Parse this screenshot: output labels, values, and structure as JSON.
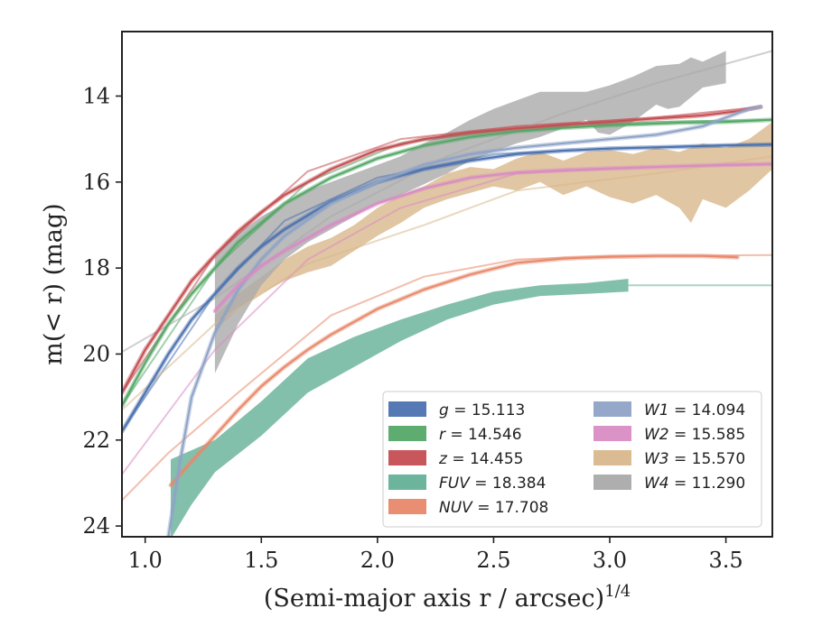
{
  "chart_data": {
    "type": "line",
    "title": "",
    "xlabel": "(Semi-major axis r / arcsec)",
    "xlabel_sup": "1/4",
    "ylabel": "m(< r) (mag)",
    "xlim": [
      0.9,
      3.7
    ],
    "ylim": [
      24.25,
      12.5
    ],
    "y_inverted": true,
    "x_ticks": [
      1.0,
      1.5,
      2.0,
      2.5,
      3.0,
      3.5
    ],
    "x_tick_labels": [
      "1.0",
      "1.5",
      "2.0",
      "2.5",
      "3.0",
      "3.5"
    ],
    "y_ticks": [
      14,
      16,
      18,
      20,
      22,
      24
    ],
    "y_tick_labels": [
      "14",
      "16",
      "18",
      "20",
      "22",
      "24"
    ],
    "grid": false,
    "legend_position": "lower-right",
    "series": [
      {
        "name": "g",
        "total": "15.113",
        "color": "#4c72b0",
        "kind": "line",
        "extrap": [
          [
            0.9,
            21.8
          ],
          [
            1.3,
            18.6
          ],
          [
            1.6,
            16.9
          ],
          [
            2.0,
            15.9
          ],
          [
            2.5,
            15.35
          ],
          [
            3.0,
            15.22
          ],
          [
            3.5,
            15.14
          ],
          [
            3.7,
            15.12
          ]
        ],
        "points": [
          [
            0.9,
            21.8
          ],
          [
            1.0,
            20.9
          ],
          [
            1.1,
            20.0
          ],
          [
            1.2,
            19.2
          ],
          [
            1.3,
            18.6
          ],
          [
            1.4,
            18.0
          ],
          [
            1.5,
            17.5
          ],
          [
            1.6,
            17.1
          ],
          [
            1.8,
            16.45
          ],
          [
            2.0,
            16.0
          ],
          [
            2.2,
            15.7
          ],
          [
            2.4,
            15.5
          ],
          [
            2.6,
            15.35
          ],
          [
            2.8,
            15.27
          ],
          [
            3.0,
            15.22
          ],
          [
            3.3,
            15.18
          ],
          [
            3.5,
            15.15
          ],
          [
            3.7,
            15.13
          ]
        ]
      },
      {
        "name": "r",
        "total": "14.546",
        "color": "#55a868",
        "kind": "line",
        "extrap": [
          [
            0.9,
            21.2
          ],
          [
            1.3,
            18.0
          ],
          [
            1.7,
            16.0
          ],
          [
            2.1,
            15.1
          ],
          [
            2.6,
            14.75
          ],
          [
            3.2,
            14.6
          ],
          [
            3.7,
            14.55
          ]
        ],
        "points": [
          [
            0.9,
            21.2
          ],
          [
            1.0,
            20.2
          ],
          [
            1.1,
            19.3
          ],
          [
            1.2,
            18.6
          ],
          [
            1.3,
            18.0
          ],
          [
            1.4,
            17.4
          ],
          [
            1.5,
            16.95
          ],
          [
            1.6,
            16.5
          ],
          [
            1.8,
            15.9
          ],
          [
            2.0,
            15.45
          ],
          [
            2.2,
            15.15
          ],
          [
            2.4,
            14.95
          ],
          [
            2.6,
            14.82
          ],
          [
            2.8,
            14.74
          ],
          [
            3.0,
            14.68
          ],
          [
            3.3,
            14.62
          ],
          [
            3.5,
            14.6
          ],
          [
            3.7,
            14.55
          ]
        ]
      },
      {
        "name": "z",
        "total": "14.455",
        "color": "#c44e52",
        "kind": "line",
        "extrap": [
          [
            0.9,
            20.9
          ],
          [
            1.3,
            17.7
          ],
          [
            1.7,
            15.75
          ],
          [
            2.1,
            15.0
          ],
          [
            2.6,
            14.7
          ],
          [
            3.2,
            14.5
          ],
          [
            3.65,
            14.25
          ]
        ],
        "points": [
          [
            0.9,
            20.9
          ],
          [
            1.0,
            19.9
          ],
          [
            1.1,
            19.1
          ],
          [
            1.2,
            18.3
          ],
          [
            1.3,
            17.7
          ],
          [
            1.4,
            17.15
          ],
          [
            1.5,
            16.7
          ],
          [
            1.6,
            16.3
          ],
          [
            1.8,
            15.7
          ],
          [
            2.0,
            15.25
          ],
          [
            2.2,
            15.0
          ],
          [
            2.4,
            14.85
          ],
          [
            2.6,
            14.75
          ],
          [
            2.8,
            14.67
          ],
          [
            3.0,
            14.6
          ],
          [
            3.2,
            14.52
          ],
          [
            3.4,
            14.45
          ],
          [
            3.55,
            14.35
          ],
          [
            3.65,
            14.25
          ]
        ]
      },
      {
        "name": "FUV",
        "total": "18.384",
        "color": "#64b097",
        "kind": "band",
        "extrap": [
          [
            3.08,
            18.4
          ],
          [
            3.7,
            18.4
          ]
        ],
        "upper": [
          [
            1.11,
            22.45
          ],
          [
            1.3,
            22.0
          ],
          [
            1.5,
            21.1
          ],
          [
            1.7,
            20.1
          ],
          [
            1.9,
            19.6
          ],
          [
            2.1,
            19.2
          ],
          [
            2.3,
            18.85
          ],
          [
            2.5,
            18.55
          ],
          [
            2.7,
            18.4
          ],
          [
            2.9,
            18.35
          ],
          [
            3.08,
            18.25
          ]
        ],
        "lower": [
          [
            1.11,
            24.3
          ],
          [
            1.2,
            23.5
          ],
          [
            1.3,
            22.75
          ],
          [
            1.5,
            21.9
          ],
          [
            1.7,
            20.9
          ],
          [
            1.9,
            20.3
          ],
          [
            2.1,
            19.7
          ],
          [
            2.3,
            19.2
          ],
          [
            2.5,
            18.85
          ],
          [
            2.7,
            18.65
          ],
          [
            2.9,
            18.6
          ],
          [
            3.08,
            18.55
          ]
        ]
      },
      {
        "name": "NUV",
        "total": "17.708",
        "color": "#e8886a",
        "kind": "line",
        "extrap": [
          [
            0.9,
            23.4
          ],
          [
            1.1,
            22.3
          ],
          [
            1.4,
            20.9
          ],
          [
            1.8,
            19.1
          ],
          [
            2.2,
            18.2
          ],
          [
            2.6,
            17.8
          ],
          [
            3.0,
            17.72
          ],
          [
            3.7,
            17.7
          ]
        ],
        "points": [
          [
            1.11,
            23.05
          ],
          [
            1.2,
            22.5
          ],
          [
            1.3,
            21.9
          ],
          [
            1.4,
            21.3
          ],
          [
            1.5,
            20.75
          ],
          [
            1.6,
            20.3
          ],
          [
            1.7,
            19.9
          ],
          [
            1.8,
            19.55
          ],
          [
            1.9,
            19.25
          ],
          [
            2.0,
            18.95
          ],
          [
            2.2,
            18.5
          ],
          [
            2.4,
            18.15
          ],
          [
            2.6,
            17.88
          ],
          [
            2.8,
            17.78
          ],
          [
            3.0,
            17.74
          ],
          [
            3.2,
            17.72
          ],
          [
            3.4,
            17.72
          ],
          [
            3.55,
            17.75
          ]
        ]
      },
      {
        "name": "W1",
        "total": "14.094",
        "color": "#8fa3c7",
        "kind": "line",
        "extrap": [],
        "points": [
          [
            1.1,
            24.25
          ],
          [
            1.15,
            22.5
          ],
          [
            1.2,
            21.0
          ],
          [
            1.3,
            19.5
          ],
          [
            1.4,
            18.5
          ],
          [
            1.5,
            17.8
          ],
          [
            1.6,
            17.25
          ],
          [
            1.8,
            16.5
          ],
          [
            2.0,
            16.0
          ],
          [
            2.2,
            15.6
          ],
          [
            2.4,
            15.35
          ],
          [
            2.6,
            15.2
          ],
          [
            2.8,
            15.1
          ],
          [
            3.0,
            15.0
          ],
          [
            3.2,
            14.9
          ],
          [
            3.4,
            14.7
          ],
          [
            3.5,
            14.5
          ],
          [
            3.6,
            14.3
          ],
          [
            3.65,
            14.25
          ]
        ]
      },
      {
        "name": "W2",
        "total": "15.585",
        "color": "#d98cc4",
        "kind": "line",
        "extrap": [
          [
            0.9,
            22.8
          ],
          [
            1.3,
            19.9
          ],
          [
            1.7,
            17.8
          ],
          [
            2.1,
            16.6
          ],
          [
            2.6,
            15.8
          ],
          [
            3.2,
            15.65
          ],
          [
            3.7,
            15.59
          ]
        ],
        "points": [
          [
            1.3,
            19.0
          ],
          [
            1.4,
            18.4
          ],
          [
            1.5,
            17.95
          ],
          [
            1.6,
            17.6
          ],
          [
            1.7,
            17.3
          ],
          [
            1.8,
            17.0
          ],
          [
            2.0,
            16.5
          ],
          [
            2.2,
            16.15
          ],
          [
            2.4,
            15.9
          ],
          [
            2.6,
            15.78
          ],
          [
            2.8,
            15.72
          ],
          [
            3.0,
            15.68
          ],
          [
            3.3,
            15.63
          ],
          [
            3.5,
            15.6
          ],
          [
            3.7,
            15.58
          ]
        ]
      },
      {
        "name": "W3",
        "total": "15.570",
        "color": "#d9b88c",
        "kind": "band",
        "extrap": [
          [
            0.9,
            21.3
          ],
          [
            1.3,
            19.3
          ],
          [
            1.7,
            17.9
          ],
          [
            2.2,
            17.0
          ],
          [
            2.6,
            16.2
          ],
          [
            3.2,
            15.8
          ],
          [
            3.7,
            15.4
          ]
        ],
        "upper": [
          [
            1.3,
            19.1
          ],
          [
            1.4,
            18.6
          ],
          [
            1.5,
            18.2
          ],
          [
            1.6,
            17.8
          ],
          [
            1.7,
            17.5
          ],
          [
            1.8,
            17.3
          ],
          [
            1.9,
            17.0
          ],
          [
            2.0,
            16.6
          ],
          [
            2.1,
            16.3
          ],
          [
            2.2,
            16.1
          ],
          [
            2.3,
            15.8
          ],
          [
            2.4,
            15.65
          ],
          [
            2.5,
            15.7
          ],
          [
            2.6,
            15.45
          ],
          [
            2.7,
            15.3
          ],
          [
            2.8,
            15.5
          ],
          [
            2.9,
            15.3
          ],
          [
            3.0,
            15.25
          ],
          [
            3.1,
            15.35
          ],
          [
            3.2,
            15.2
          ],
          [
            3.3,
            15.3
          ],
          [
            3.4,
            15.1
          ],
          [
            3.5,
            15.2
          ],
          [
            3.6,
            15.0
          ],
          [
            3.7,
            14.6
          ]
        ],
        "lower": [
          [
            1.3,
            19.45
          ],
          [
            1.4,
            18.95
          ],
          [
            1.5,
            18.6
          ],
          [
            1.6,
            18.3
          ],
          [
            1.7,
            18.1
          ],
          [
            1.8,
            17.95
          ],
          [
            1.9,
            17.6
          ],
          [
            2.0,
            17.25
          ],
          [
            2.1,
            16.95
          ],
          [
            2.2,
            16.6
          ],
          [
            2.3,
            16.4
          ],
          [
            2.4,
            16.25
          ],
          [
            2.5,
            16.1
          ],
          [
            2.6,
            16.2
          ],
          [
            2.7,
            16.0
          ],
          [
            2.8,
            16.3
          ],
          [
            2.9,
            16.1
          ],
          [
            3.0,
            16.35
          ],
          [
            3.1,
            16.5
          ],
          [
            3.2,
            16.3
          ],
          [
            3.3,
            16.6
          ],
          [
            3.35,
            16.95
          ],
          [
            3.4,
            16.4
          ],
          [
            3.5,
            16.6
          ],
          [
            3.6,
            16.2
          ],
          [
            3.7,
            15.7
          ]
        ]
      },
      {
        "name": "W4",
        "total": "11.290",
        "color": "#aaaaaa",
        "kind": "band",
        "extrap": [
          [
            0.9,
            19.95
          ],
          [
            1.3,
            18.7
          ],
          [
            1.8,
            16.8
          ],
          [
            2.3,
            15.4
          ],
          [
            2.8,
            14.4
          ],
          [
            3.2,
            13.7
          ],
          [
            3.7,
            12.95
          ]
        ],
        "upper": [
          [
            1.3,
            17.7
          ],
          [
            1.4,
            17.2
          ],
          [
            1.5,
            16.8
          ],
          [
            1.6,
            16.5
          ],
          [
            1.7,
            16.2
          ],
          [
            1.8,
            16.0
          ],
          [
            1.9,
            15.8
          ],
          [
            2.0,
            15.6
          ],
          [
            2.1,
            15.4
          ],
          [
            2.2,
            15.1
          ],
          [
            2.3,
            14.85
          ],
          [
            2.4,
            14.55
          ],
          [
            2.5,
            14.3
          ],
          [
            2.6,
            14.1
          ],
          [
            2.7,
            13.9
          ],
          [
            2.8,
            13.9
          ],
          [
            2.9,
            13.9
          ],
          [
            3.0,
            13.75
          ],
          [
            3.1,
            13.55
          ],
          [
            3.2,
            13.3
          ],
          [
            3.3,
            13.25
          ],
          [
            3.35,
            13.1
          ],
          [
            3.4,
            13.2
          ],
          [
            3.5,
            12.95
          ]
        ],
        "lower": [
          [
            1.3,
            20.45
          ],
          [
            1.4,
            19.3
          ],
          [
            1.5,
            18.4
          ],
          [
            1.6,
            17.8
          ],
          [
            1.7,
            17.4
          ],
          [
            1.8,
            17.1
          ],
          [
            1.9,
            16.8
          ],
          [
            2.0,
            16.5
          ],
          [
            2.1,
            16.3
          ],
          [
            2.2,
            16.05
          ],
          [
            2.3,
            15.8
          ],
          [
            2.4,
            15.5
          ],
          [
            2.5,
            15.3
          ],
          [
            2.6,
            15.1
          ],
          [
            2.7,
            14.95
          ],
          [
            2.8,
            14.75
          ],
          [
            2.9,
            14.55
          ],
          [
            2.95,
            14.85
          ],
          [
            3.0,
            14.9
          ],
          [
            3.1,
            14.6
          ],
          [
            3.2,
            14.2
          ],
          [
            3.25,
            14.3
          ],
          [
            3.3,
            14.25
          ],
          [
            3.4,
            13.8
          ],
          [
            3.5,
            13.7
          ]
        ]
      }
    ]
  }
}
